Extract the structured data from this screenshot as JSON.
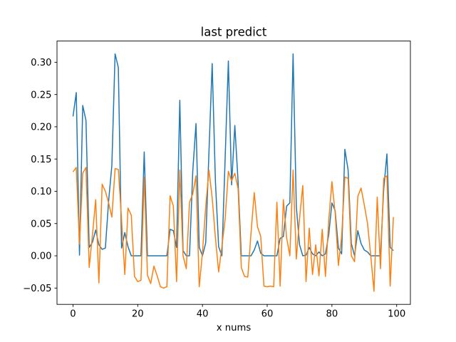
{
  "figure": {
    "background": "#ffffff",
    "spine_color": "#000000",
    "tick_color": "#000000"
  },
  "chart_data": {
    "type": "line",
    "title": "last predict",
    "xlabel": "x nums",
    "ylabel": "",
    "legend": "none",
    "grid": false,
    "xlim": [
      -4.95,
      104.25
    ],
    "ylim": [
      -0.0753,
      0.3329
    ],
    "xticks": [
      0,
      20,
      40,
      60,
      80,
      100
    ],
    "yticks": [
      -0.05,
      0.0,
      0.05,
      0.1,
      0.15,
      0.2,
      0.25,
      0.3
    ],
    "x": [
      0,
      1,
      2,
      3,
      4,
      5,
      6,
      7,
      8,
      9,
      10,
      11,
      12,
      13,
      14,
      15,
      16,
      17,
      18,
      19,
      20,
      21,
      22,
      23,
      24,
      25,
      26,
      27,
      28,
      29,
      30,
      31,
      32,
      33,
      34,
      35,
      36,
      37,
      38,
      39,
      40,
      41,
      42,
      43,
      44,
      45,
      46,
      47,
      48,
      49,
      50,
      51,
      52,
      53,
      54,
      55,
      56,
      57,
      58,
      59,
      60,
      61,
      62,
      63,
      64,
      65,
      66,
      67,
      68,
      69,
      70,
      71,
      72,
      73,
      74,
      75,
      76,
      77,
      78,
      79,
      80,
      81,
      82,
      83,
      84,
      85,
      86,
      87,
      88,
      89,
      90,
      91,
      92,
      93,
      94,
      95,
      96,
      97,
      98,
      99
    ],
    "series": [
      {
        "name": "blue-line",
        "color": "#1f77b4",
        "values": [
          0.216,
          0.253,
          0.001,
          0.233,
          0.21,
          0.013,
          0.021,
          0.04,
          0.017,
          0.01,
          0.012,
          0.085,
          0.14,
          0.313,
          0.292,
          0.012,
          0.036,
          0.014,
          0.0,
          0.0,
          0.0,
          0.0,
          0.161,
          0.0,
          0.0,
          0.0,
          0.0,
          0.0,
          0.0,
          0.0,
          0.041,
          0.039,
          0.013,
          0.241,
          0.008,
          0.0,
          0.0,
          0.131,
          0.205,
          0.013,
          0.0,
          0.02,
          0.16,
          0.298,
          0.115,
          0.014,
          0.0,
          0.15,
          0.302,
          0.11,
          0.202,
          0.115,
          0.0,
          0.0,
          0.0,
          0.0,
          0.009,
          0.023,
          0.004,
          0.0,
          0.0,
          0.0,
          0.0,
          0.0,
          0.027,
          0.03,
          0.077,
          0.082,
          0.313,
          0.076,
          0.017,
          0.0,
          0.001,
          0.013,
          0.003,
          0.0,
          0.006,
          0.0,
          0.003,
          0.032,
          0.082,
          0.07,
          0.012,
          0.003,
          0.165,
          0.133,
          0.019,
          0.0,
          0.039,
          0.019,
          0.009,
          0.006,
          0.0,
          0.0,
          0.0,
          0.0,
          0.103,
          0.158,
          0.013,
          0.008
        ]
      },
      {
        "name": "orange-line",
        "color": "#ff7f0e",
        "values": [
          0.13,
          0.137,
          0.018,
          0.128,
          0.137,
          -0.018,
          0.032,
          0.087,
          -0.042,
          0.111,
          0.1,
          0.082,
          0.06,
          0.135,
          0.134,
          0.056,
          -0.029,
          0.074,
          0.063,
          -0.032,
          -0.04,
          -0.038,
          0.122,
          -0.03,
          -0.043,
          -0.016,
          -0.031,
          -0.048,
          -0.05,
          -0.048,
          0.093,
          0.077,
          -0.04,
          0.133,
          0.0,
          -0.02,
          0.083,
          0.096,
          0.124,
          -0.048,
          0.005,
          0.076,
          0.133,
          0.09,
          0.028,
          -0.025,
          0.014,
          0.057,
          0.131,
          0.116,
          0.128,
          0.104,
          -0.018,
          -0.032,
          -0.033,
          0.035,
          0.098,
          0.045,
          0.03,
          -0.047,
          -0.048,
          -0.047,
          -0.048,
          0.083,
          -0.047,
          0.087,
          0.028,
          0.0,
          0.133,
          -0.005,
          0.058,
          0.109,
          -0.04,
          0.043,
          -0.029,
          0.017,
          -0.031,
          0.041,
          -0.032,
          0.054,
          0.115,
          0.066,
          -0.015,
          0.03,
          0.122,
          0.12,
          0.0,
          -0.009,
          0.092,
          0.105,
          0.079,
          0.05,
          0.0,
          -0.055,
          0.091,
          -0.02,
          0.12,
          0.124,
          -0.047,
          0.06
        ]
      }
    ]
  }
}
